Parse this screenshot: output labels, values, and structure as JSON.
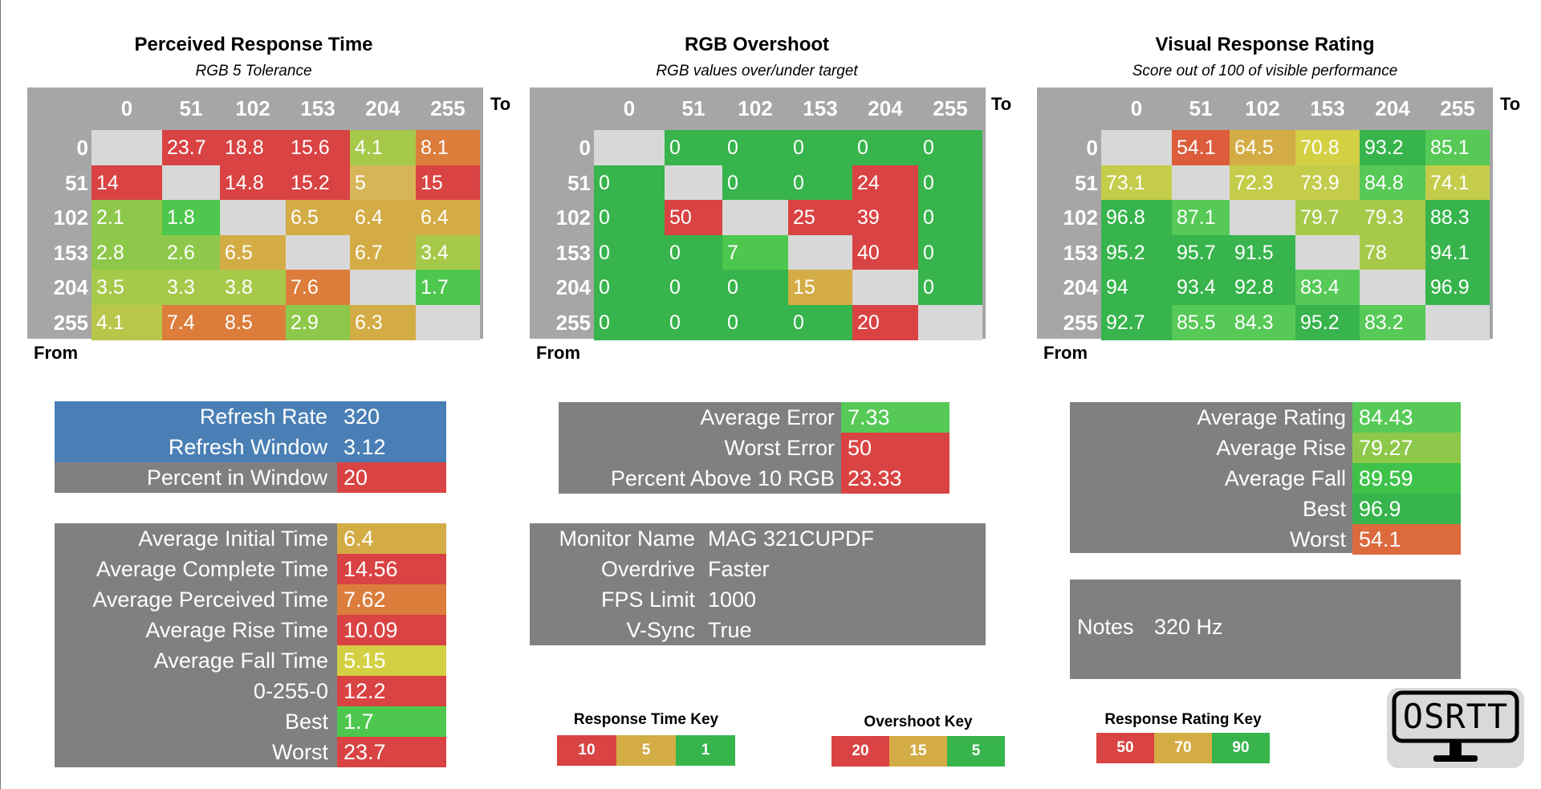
{
  "chart_data": [
    {
      "type": "heatmap",
      "title": "Perceived Response Time",
      "subtitle": "RGB 5 Tolerance",
      "xlabel": "To",
      "ylabel": "From",
      "categories": [
        "0",
        "51",
        "102",
        "153",
        "204",
        "255"
      ],
      "values": [
        [
          null,
          23.7,
          18.8,
          15.6,
          4.1,
          8.1
        ],
        [
          14,
          null,
          14.8,
          15.2,
          5,
          15
        ],
        [
          2.1,
          1.8,
          null,
          6.5,
          6.4,
          6.4
        ],
        [
          2.8,
          2.6,
          6.5,
          null,
          6.7,
          3.4
        ],
        [
          3.5,
          3.3,
          3.8,
          7.6,
          null,
          1.7
        ],
        [
          4.1,
          7.4,
          8.5,
          2.9,
          6.3,
          null
        ]
      ],
      "colors": [
        [
          null,
          "#d94343",
          "#d94343",
          "#d94343",
          "#a6c94a",
          "#dc7d3c"
        ],
        [
          null,
          null,
          "#d94343",
          "#d94343",
          "#d6b458",
          "#d94343"
        ],
        [
          null,
          null,
          null,
          "#d4ac45",
          "#d4ac45",
          "#d4ac45"
        ],
        [
          null,
          null,
          null,
          null,
          "#d4ac45",
          "#a6c94a"
        ],
        [
          null,
          null,
          null,
          "#dc7d3c",
          null,
          "#4dc74d"
        ],
        [
          null,
          "#dc7d3c",
          "#dc7d3c",
          "#8ec84a",
          "#d4ac45",
          null
        ]
      ]
    },
    {
      "type": "heatmap",
      "title": "RGB Overshoot",
      "subtitle": "RGB values over/under target",
      "xlabel": "To",
      "ylabel": "From",
      "categories": [
        "0",
        "51",
        "102",
        "153",
        "204",
        "255"
      ],
      "values": [
        [
          null,
          0,
          0,
          0,
          0,
          0
        ],
        [
          0,
          null,
          0,
          0,
          24,
          0
        ],
        [
          0,
          50,
          null,
          25,
          39,
          0
        ],
        [
          0,
          0,
          7,
          null,
          40,
          0
        ],
        [
          0,
          0,
          0,
          15,
          null,
          0
        ],
        [
          0,
          0,
          0,
          0,
          20,
          null
        ]
      ]
    },
    {
      "type": "heatmap",
      "title": "Visual Response Rating",
      "subtitle": "Score out of 100 of visible performance",
      "xlabel": "To",
      "ylabel": "From",
      "categories": [
        "0",
        "51",
        "102",
        "153",
        "204",
        "255"
      ],
      "values": [
        [
          null,
          54.1,
          64.5,
          70.8,
          93.2,
          85.1
        ],
        [
          73.1,
          null,
          72.3,
          73.9,
          84.8,
          74.1
        ],
        [
          96.8,
          87.1,
          null,
          79.7,
          79.3,
          88.3
        ],
        [
          95.2,
          95.7,
          91.5,
          null,
          78,
          94.1
        ],
        [
          94,
          93.4,
          92.8,
          83.4,
          null,
          96.9
        ],
        [
          92.7,
          85.5,
          84.3,
          95.2,
          83.2,
          null
        ]
      ]
    }
  ],
  "refresh_panel": {
    "rows": [
      {
        "label": "Refresh Rate",
        "value": "320",
        "label_bg": "#4a7fb5",
        "value_bg": "#4a7fb5"
      },
      {
        "label": "Refresh Window",
        "value": "3.12",
        "label_bg": "#4a7fb5",
        "value_bg": "#4a7fb5"
      },
      {
        "label": "Percent in Window",
        "value": "20",
        "label_bg": "#808080",
        "value_bg": "#d94343"
      }
    ]
  },
  "times_panel": {
    "rows": [
      {
        "label": "Average Initial Time",
        "value": "6.4",
        "value_bg": "#d4ac45"
      },
      {
        "label": "Average Complete Time",
        "value": "14.56",
        "value_bg": "#d94343"
      },
      {
        "label": "Average Perceived Time",
        "value": "7.62",
        "value_bg": "#dc7d3c"
      },
      {
        "label": "Average Rise Time",
        "value": "10.09",
        "value_bg": "#d94343"
      },
      {
        "label": "Average Fall Time",
        "value": "5.15",
        "value_bg": "#d4d043"
      },
      {
        "label": "0-255-0",
        "value": "12.2",
        "value_bg": "#d94343"
      },
      {
        "label": "Best",
        "value": "1.7",
        "value_bg": "#4dc74d"
      },
      {
        "label": "Worst",
        "value": "23.7",
        "value_bg": "#d94343"
      }
    ]
  },
  "error_panel": {
    "rows": [
      {
        "label": "Average Error",
        "value": "7.33",
        "value_bg": "#56c956"
      },
      {
        "label": "Worst Error",
        "value": "50",
        "value_bg": "#d94343"
      },
      {
        "label": "Percent Above 10 RGB",
        "value": "23.33",
        "value_bg": "#d94343"
      }
    ]
  },
  "monitor_panel": {
    "rows": [
      {
        "label": "Monitor Name",
        "value": "MAG 321CUPDF"
      },
      {
        "label": "Overdrive",
        "value": "Faster"
      },
      {
        "label": "FPS Limit",
        "value": "1000"
      },
      {
        "label": "V-Sync",
        "value": "True"
      }
    ]
  },
  "rating_panel": {
    "rows": [
      {
        "label": "Average Rating",
        "value": "84.43",
        "value_bg": "#56c956"
      },
      {
        "label": "Average Rise",
        "value": "79.27",
        "value_bg": "#8ec84a"
      },
      {
        "label": "Average Fall",
        "value": "89.59",
        "value_bg": "#3fc24a"
      },
      {
        "label": "Best",
        "value": "96.9",
        "value_bg": "#37b44c"
      },
      {
        "label": "Worst",
        "value": "54.1",
        "value_bg": "#dc6a3c"
      }
    ]
  },
  "notes_panel": {
    "label": "Notes",
    "value": "320 Hz"
  },
  "keys": [
    {
      "title": "Response Time Key",
      "cells": [
        {
          "text": "10",
          "bg": "#d94343"
        },
        {
          "text": "5",
          "bg": "#d4ac45"
        },
        {
          "text": "1",
          "bg": "#37b44c"
        }
      ]
    },
    {
      "title": "Overshoot Key",
      "cells": [
        {
          "text": "20",
          "bg": "#d94343"
        },
        {
          "text": "15",
          "bg": "#d4ac45"
        },
        {
          "text": "5",
          "bg": "#37b44c"
        }
      ]
    },
    {
      "title": "Response Rating Key",
      "cells": [
        {
          "text": "50",
          "bg": "#d94343"
        },
        {
          "text": "70",
          "bg": "#d4ac45"
        },
        {
          "text": "90",
          "bg": "#37b44c"
        }
      ]
    }
  ],
  "logo": {
    "text": "OSRTT"
  },
  "colors": {
    "diagonal": "#d8d8d8",
    "header": "#a6a6a6",
    "panel": "#808080",
    "red": "#d94343",
    "orange": "#dc7d3c",
    "amber": "#d4ac45",
    "yellow": "#d4d043",
    "lime": "#a6c94a",
    "green": "#4dc74d",
    "darkgreen": "#37b44c"
  }
}
